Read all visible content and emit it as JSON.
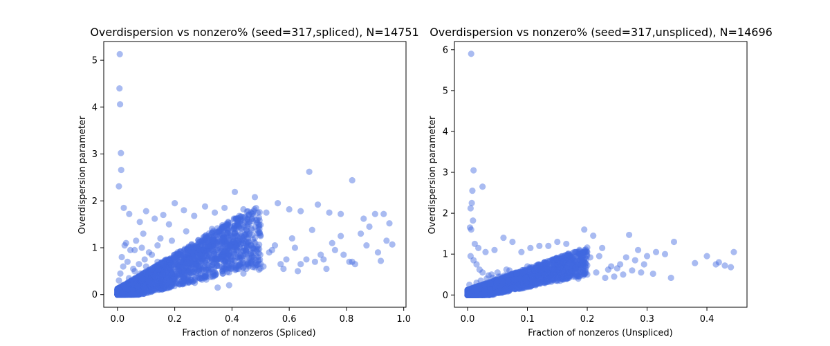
{
  "style": {
    "point_color": "#4169e1",
    "point_alpha": 0.45
  },
  "chart_data": [
    {
      "type": "scatter",
      "title": "Overdispersion vs nonzero% (seed=317,spliced), N=14751",
      "xlabel": "Fraction of nonzeros (Spliced)",
      "ylabel": "Overdispersion parameter",
      "xlim": [
        -0.048,
        1.008
      ],
      "ylim": [
        -0.27,
        5.4
      ],
      "xticks": [
        0.0,
        0.2,
        0.4,
        0.6,
        0.8,
        1.0
      ],
      "xtick_labels": [
        "0.0",
        "0.2",
        "0.4",
        "0.6",
        "0.8",
        "1.0"
      ],
      "yticks": [
        0,
        1,
        2,
        3,
        4,
        5
      ],
      "ytick_labels": [
        "0",
        "1",
        "2",
        "3",
        "4",
        "5"
      ],
      "grid": false,
      "series": [
        {
          "x": [
            0.008,
            0.007,
            0.009,
            0.012,
            0.013,
            0.005,
            0.022,
            0.041,
            0.078,
            0.1,
            0.13,
            0.16,
            0.2,
            0.232,
            0.268,
            0.306,
            0.34,
            0.374,
            0.41,
            0.44,
            0.48,
            0.52,
            0.56,
            0.6,
            0.64,
            0.67,
            0.7,
            0.74,
            0.78,
            0.82,
            0.86,
            0.9,
            0.93,
            0.95,
            0.96,
            0.92,
            0.88,
            0.85,
            0.82,
            0.78,
            0.75,
            0.72,
            0.68,
            0.64,
            0.61,
            0.58,
            0.55,
            0.5,
            0.47,
            0.44,
            0.41,
            0.37,
            0.33,
            0.3,
            0.27,
            0.24,
            0.21,
            0.18,
            0.15,
            0.12,
            0.09,
            0.06,
            0.03,
            0.02,
            0.01,
            0.005,
            0.015,
            0.025,
            0.035,
            0.045,
            0.055,
            0.065,
            0.075,
            0.085,
            0.095,
            0.11,
            0.14,
            0.17,
            0.19,
            0.22,
            0.25,
            0.28,
            0.31,
            0.35,
            0.38,
            0.42,
            0.45,
            0.49,
            0.53,
            0.57,
            0.62,
            0.66,
            0.71,
            0.76,
            0.81,
            0.87,
            0.91,
            0.94,
            0.02,
            0.04,
            0.06,
            0.08,
            0.1,
            0.12,
            0.14,
            0.16,
            0.18,
            0.2,
            0.22,
            0.24,
            0.26,
            0.28,
            0.3,
            0.32,
            0.34,
            0.36,
            0.38,
            0.4,
            0.43,
            0.46,
            0.51,
            0.54,
            0.59,
            0.63,
            0.69,
            0.73,
            0.79,
            0.83,
            0.035,
            0.07,
            0.11,
            0.15,
            0.19,
            0.23,
            0.27,
            0.31,
            0.35,
            0.39,
            0.004,
            0.006,
            0.003,
            0.01,
            0.018,
            0.028
          ],
          "y": [
            5.13,
            4.4,
            4.06,
            3.02,
            2.66,
            2.31,
            1.85,
            1.72,
            1.55,
            1.78,
            1.62,
            1.7,
            1.95,
            1.8,
            1.68,
            1.88,
            1.75,
            1.85,
            2.19,
            1.82,
            2.08,
            1.75,
            1.95,
            1.82,
            1.78,
            2.62,
            1.92,
            1.75,
            1.72,
            2.44,
            1.62,
            1.72,
            1.72,
            1.52,
            1.07,
            0.72,
            1.45,
            1.3,
            0.7,
            1.25,
            1.1,
            0.75,
            1.38,
            0.65,
            1.2,
            0.55,
            1.05,
            1.25,
            0.8,
            0.45,
            1.3,
            0.95,
            1.4,
            1.1,
            0.65,
            1.35,
            0.9,
            1.5,
            1.2,
            0.85,
            1.3,
            0.95,
            1.1,
            0.6,
            0.45,
            0.3,
            0.8,
            1.05,
            0.7,
            0.95,
            0.55,
            1.15,
            0.65,
            1.0,
            0.75,
            0.9,
            1.05,
            0.7,
            1.15,
            0.85,
            1.0,
            0.6,
            1.2,
            0.75,
            0.95,
            1.1,
            0.55,
            0.8,
            0.9,
            0.65,
            1.0,
            0.75,
            0.85,
            0.95,
            0.7,
            1.05,
            0.9,
            1.15,
            0.2,
            0.35,
            0.5,
            0.45,
            0.6,
            0.55,
            0.7,
            0.65,
            0.75,
            0.8,
            0.7,
            0.85,
            0.9,
            0.8,
            0.95,
            0.85,
            1.0,
            0.75,
            0.9,
            0.65,
            0.85,
            1.05,
            0.6,
            0.95,
            0.75,
            0.5,
            0.7,
            0.55,
            0.85,
            0.65,
            0.12,
            0.18,
            0.28,
            0.35,
            0.42,
            0.3,
            0.25,
            0.32,
            0.15,
            0.2,
            0.05,
            0.1,
            0.02,
            0.08,
            0.04,
            0.15
          ]
        }
      ]
    },
    {
      "type": "scatter",
      "title": "Overdispersion vs nonzero% (seed=317,unspliced), N=14696",
      "xlabel": "Fraction of nonzeros (Unspliced)",
      "ylabel": "Overdispersion parameter",
      "xlim": [
        -0.022,
        0.467
      ],
      "ylim": [
        -0.3,
        6.2
      ],
      "xticks": [
        0.0,
        0.1,
        0.2,
        0.3,
        0.4
      ],
      "xtick_labels": [
        "0.0",
        "0.1",
        "0.2",
        "0.3",
        "0.4"
      ],
      "yticks": [
        0,
        1,
        2,
        3,
        4,
        5,
        6
      ],
      "ytick_labels": [
        "0",
        "1",
        "2",
        "3",
        "4",
        "5",
        "6"
      ],
      "grid": false,
      "series": [
        {
          "x": [
            0.006,
            0.01,
            0.025,
            0.008,
            0.007,
            0.005,
            0.009,
            0.004,
            0.006,
            0.012,
            0.018,
            0.03,
            0.045,
            0.06,
            0.075,
            0.09,
            0.105,
            0.12,
            0.135,
            0.15,
            0.165,
            0.18,
            0.195,
            0.21,
            0.225,
            0.24,
            0.255,
            0.27,
            0.285,
            0.3,
            0.315,
            0.33,
            0.345,
            0.4,
            0.415,
            0.43,
            0.445,
            0.44,
            0.42,
            0.38,
            0.34,
            0.31,
            0.29,
            0.275,
            0.26,
            0.245,
            0.23,
            0.215,
            0.2,
            0.185,
            0.17,
            0.155,
            0.14,
            0.125,
            0.11,
            0.095,
            0.08,
            0.065,
            0.05,
            0.035,
            0.02,
            0.015,
            0.01,
            0.005,
            0.003,
            0.025,
            0.04,
            0.055,
            0.07,
            0.085,
            0.1,
            0.115,
            0.13,
            0.145,
            0.16,
            0.175,
            0.19,
            0.205,
            0.22,
            0.235,
            0.25,
            0.265,
            0.28,
            0.295,
            0.015,
            0.022,
            0.032,
            0.042,
            0.052,
            0.062,
            0.072,
            0.082,
            0.092,
            0.102,
            0.112,
            0.122,
            0.132,
            0.142,
            0.008,
            0.012,
            0.02,
            0.028,
            0.038,
            0.048,
            0.058,
            0.068,
            0.078,
            0.088,
            0.098,
            0.108,
            0.118,
            0.128,
            0.004,
            0.007,
            0.011,
            0.016,
            0.002,
            0.003
          ],
          "y": [
            5.9,
            3.05,
            2.65,
            2.55,
            2.25,
            2.12,
            1.82,
            1.65,
            1.6,
            1.25,
            1.15,
            1.05,
            1.1,
            1.4,
            1.3,
            1.05,
            1.15,
            1.2,
            1.2,
            1.3,
            1.25,
            1.05,
            1.6,
            1.45,
            1.15,
            0.7,
            0.75,
            1.47,
            1.1,
            0.95,
            1.05,
            1.0,
            1.3,
            0.95,
            0.75,
            0.72,
            1.05,
            0.68,
            0.8,
            0.78,
            0.42,
            0.52,
            0.55,
            0.6,
            0.5,
            0.45,
            0.42,
            0.55,
            0.5,
            0.4,
            0.48,
            0.35,
            0.42,
            0.52,
            0.38,
            0.58,
            0.45,
            0.62,
            0.55,
            0.48,
            0.62,
            0.75,
            0.85,
            0.95,
            0.25,
            0.55,
            0.5,
            0.45,
            0.6,
            0.55,
            0.7,
            0.65,
            0.75,
            0.62,
            0.8,
            0.72,
            0.85,
            0.92,
            0.95,
            0.62,
            0.65,
            0.92,
            0.85,
            0.75,
            0.3,
            0.35,
            0.4,
            0.42,
            0.45,
            0.48,
            0.5,
            0.52,
            0.55,
            0.58,
            0.6,
            0.62,
            0.64,
            0.66,
            0.15,
            0.2,
            0.22,
            0.25,
            0.28,
            0.3,
            0.32,
            0.35,
            0.38,
            0.4,
            0.42,
            0.45,
            0.48,
            0.5,
            0.05,
            0.08,
            0.1,
            0.12,
            0.02,
            0.04
          ]
        }
      ]
    }
  ]
}
